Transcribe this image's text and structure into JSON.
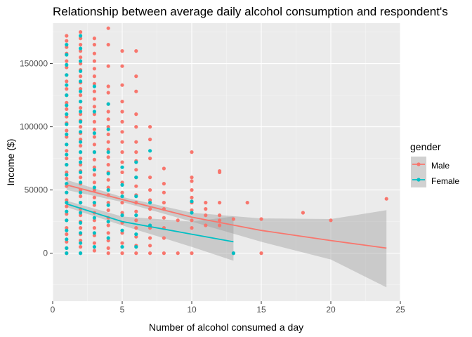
{
  "chart_data": {
    "type": "scatter",
    "title": "Relationship between average daily alcohol consumption and respondent's",
    "xlabel": "Number of alcohol consumed a day",
    "ylabel": "Income ($)",
    "xlim": [
      0,
      25
    ],
    "ylim": [
      -38000,
      182000
    ],
    "x_ticks": [
      0,
      5,
      10,
      15,
      20,
      25
    ],
    "x_tick_labels": [
      "0",
      "5",
      "10",
      "15",
      "20",
      "25"
    ],
    "y_ticks": [
      0,
      50000,
      100000,
      150000
    ],
    "y_tick_labels": [
      "0",
      "50000",
      "100000",
      "150000"
    ],
    "grid": true,
    "legend": {
      "title": "gender",
      "position": "right",
      "entries": [
        "Male",
        "Female"
      ]
    },
    "colors": {
      "Male": "#F8766D",
      "Female": "#00BFC4",
      "ribbon": "#999999",
      "panel": "#EBEBEB"
    },
    "series": [
      {
        "name": "Male",
        "color": "#F8766D",
        "points": [
          [
            1,
            172000
          ],
          [
            1,
            168000
          ],
          [
            1,
            163000
          ],
          [
            1,
            158000
          ],
          [
            1,
            152000
          ],
          [
            1,
            147000
          ],
          [
            1,
            141000
          ],
          [
            1,
            136000
          ],
          [
            1,
            130000
          ],
          [
            1,
            125000
          ],
          [
            1,
            119000
          ],
          [
            1,
            114000
          ],
          [
            1,
            108000
          ],
          [
            1,
            103000
          ],
          [
            1,
            97000
          ],
          [
            1,
            92000
          ],
          [
            1,
            86000
          ],
          [
            1,
            81000
          ],
          [
            1,
            75000
          ],
          [
            1,
            70000
          ],
          [
            1,
            64000
          ],
          [
            1,
            59000
          ],
          [
            1,
            53000
          ],
          [
            1,
            48000
          ],
          [
            1,
            42000
          ],
          [
            1,
            37000
          ],
          [
            1,
            31000
          ],
          [
            1,
            26000
          ],
          [
            1,
            20000
          ],
          [
            1,
            15000
          ],
          [
            1,
            9000
          ],
          [
            1,
            4000
          ],
          [
            1,
            0
          ],
          [
            2,
            175000
          ],
          [
            2,
            170000
          ],
          [
            2,
            165000
          ],
          [
            2,
            160000
          ],
          [
            2,
            155000
          ],
          [
            2,
            150000
          ],
          [
            2,
            145000
          ],
          [
            2,
            140000
          ],
          [
            2,
            135000
          ],
          [
            2,
            130000
          ],
          [
            2,
            125000
          ],
          [
            2,
            120000
          ],
          [
            2,
            115000
          ],
          [
            2,
            110000
          ],
          [
            2,
            105000
          ],
          [
            2,
            100000
          ],
          [
            2,
            95000
          ],
          [
            2,
            90000
          ],
          [
            2,
            85000
          ],
          [
            2,
            80000
          ],
          [
            2,
            75000
          ],
          [
            2,
            70000
          ],
          [
            2,
            65000
          ],
          [
            2,
            60000
          ],
          [
            2,
            55000
          ],
          [
            2,
            50000
          ],
          [
            2,
            45000
          ],
          [
            2,
            40000
          ],
          [
            2,
            35000
          ],
          [
            2,
            30000
          ],
          [
            2,
            25000
          ],
          [
            2,
            20000
          ],
          [
            2,
            15000
          ],
          [
            2,
            10000
          ],
          [
            2,
            5000
          ],
          [
            2,
            0
          ],
          [
            3,
            170000
          ],
          [
            3,
            165000
          ],
          [
            3,
            158000
          ],
          [
            3,
            152000
          ],
          [
            3,
            146000
          ],
          [
            3,
            140000
          ],
          [
            3,
            134000
          ],
          [
            3,
            128000
          ],
          [
            3,
            122000
          ],
          [
            3,
            116000
          ],
          [
            3,
            110000
          ],
          [
            3,
            104000
          ],
          [
            3,
            98000
          ],
          [
            3,
            92000
          ],
          [
            3,
            86000
          ],
          [
            3,
            80000
          ],
          [
            3,
            74000
          ],
          [
            3,
            68000
          ],
          [
            3,
            62000
          ],
          [
            3,
            56000
          ],
          [
            3,
            50000
          ],
          [
            3,
            44000
          ],
          [
            3,
            38000
          ],
          [
            3,
            32000
          ],
          [
            3,
            26000
          ],
          [
            3,
            20000
          ],
          [
            3,
            14000
          ],
          [
            3,
            8000
          ],
          [
            3,
            2000
          ],
          [
            4,
            178000
          ],
          [
            4,
            165000
          ],
          [
            4,
            148000
          ],
          [
            4,
            132000
          ],
          [
            4,
            127000
          ],
          [
            4,
            118000
          ],
          [
            4,
            112000
          ],
          [
            4,
            106000
          ],
          [
            4,
            100000
          ],
          [
            4,
            94000
          ],
          [
            4,
            88000
          ],
          [
            4,
            82000
          ],
          [
            4,
            76000
          ],
          [
            4,
            70000
          ],
          [
            4,
            64000
          ],
          [
            4,
            58000
          ],
          [
            4,
            52000
          ],
          [
            4,
            46000
          ],
          [
            4,
            40000
          ],
          [
            4,
            34000
          ],
          [
            4,
            28000
          ],
          [
            4,
            22000
          ],
          [
            4,
            16000
          ],
          [
            4,
            10000
          ],
          [
            4,
            4000
          ],
          [
            4,
            0
          ],
          [
            5,
            160000
          ],
          [
            5,
            148000
          ],
          [
            5,
            133000
          ],
          [
            5,
            120000
          ],
          [
            5,
            112000
          ],
          [
            5,
            104000
          ],
          [
            5,
            96000
          ],
          [
            5,
            88000
          ],
          [
            5,
            80000
          ],
          [
            5,
            72000
          ],
          [
            5,
            64000
          ],
          [
            5,
            56000
          ],
          [
            5,
            48000
          ],
          [
            5,
            40000
          ],
          [
            5,
            32000
          ],
          [
            5,
            24000
          ],
          [
            5,
            16000
          ],
          [
            5,
            8000
          ],
          [
            5,
            0
          ],
          [
            6,
            160000
          ],
          [
            6,
            140000
          ],
          [
            6,
            128000
          ],
          [
            6,
            110000
          ],
          [
            6,
            100000
          ],
          [
            6,
            88000
          ],
          [
            6,
            80000
          ],
          [
            6,
            73000
          ],
          [
            6,
            66000
          ],
          [
            6,
            60000
          ],
          [
            6,
            53000
          ],
          [
            6,
            46000
          ],
          [
            6,
            40000
          ],
          [
            6,
            33000
          ],
          [
            6,
            26000
          ],
          [
            6,
            20000
          ],
          [
            6,
            13000
          ],
          [
            6,
            6000
          ],
          [
            6,
            0
          ],
          [
            7,
            100000
          ],
          [
            7,
            90000
          ],
          [
            7,
            75000
          ],
          [
            7,
            60000
          ],
          [
            7,
            50000
          ],
          [
            7,
            42000
          ],
          [
            7,
            35000
          ],
          [
            7,
            28000
          ],
          [
            7,
            20000
          ],
          [
            7,
            12000
          ],
          [
            7,
            6000
          ],
          [
            7,
            0
          ],
          [
            8,
            67000
          ],
          [
            8,
            55000
          ],
          [
            8,
            48000
          ],
          [
            8,
            40000
          ],
          [
            8,
            35000
          ],
          [
            8,
            28000
          ],
          [
            8,
            20000
          ],
          [
            8,
            12000
          ],
          [
            8,
            0
          ],
          [
            9,
            26000
          ],
          [
            9,
            0
          ],
          [
            10,
            80000
          ],
          [
            10,
            60000
          ],
          [
            10,
            57000
          ],
          [
            10,
            50000
          ],
          [
            10,
            44000
          ],
          [
            10,
            40000
          ],
          [
            10,
            34000
          ],
          [
            10,
            26000
          ],
          [
            10,
            20000
          ],
          [
            10,
            0
          ],
          [
            11,
            40000
          ],
          [
            11,
            35000
          ],
          [
            11,
            30000
          ],
          [
            11,
            22000
          ],
          [
            12,
            65000
          ],
          [
            12,
            64000
          ],
          [
            12,
            40000
          ],
          [
            12,
            30000
          ],
          [
            12,
            26000
          ],
          [
            12,
            22000
          ],
          [
            13,
            27000
          ],
          [
            13,
            0
          ],
          [
            14,
            40000
          ],
          [
            15,
            27000
          ],
          [
            15,
            0
          ],
          [
            18,
            32000
          ],
          [
            20,
            26000
          ],
          [
            24,
            43000
          ]
        ]
      },
      {
        "name": "Female",
        "color": "#00BFC4",
        "points": [
          [
            1,
            165000
          ],
          [
            1,
            157000
          ],
          [
            1,
            149000
          ],
          [
            1,
            141000
          ],
          [
            1,
            133000
          ],
          [
            1,
            125000
          ],
          [
            1,
            117000
          ],
          [
            1,
            110000
          ],
          [
            1,
            102000
          ],
          [
            1,
            94000
          ],
          [
            1,
            86000
          ],
          [
            1,
            78000
          ],
          [
            1,
            70000
          ],
          [
            1,
            62000
          ],
          [
            1,
            55000
          ],
          [
            1,
            48000
          ],
          [
            1,
            40000
          ],
          [
            1,
            33000
          ],
          [
            1,
            26000
          ],
          [
            1,
            18000
          ],
          [
            1,
            11000
          ],
          [
            1,
            4000
          ],
          [
            1,
            0
          ],
          [
            2,
            172000
          ],
          [
            2,
            162000
          ],
          [
            2,
            152000
          ],
          [
            2,
            144000
          ],
          [
            2,
            136000
          ],
          [
            2,
            128000
          ],
          [
            2,
            120000
          ],
          [
            2,
            112000
          ],
          [
            2,
            104000
          ],
          [
            2,
            96000
          ],
          [
            2,
            88000
          ],
          [
            2,
            80000
          ],
          [
            2,
            72000
          ],
          [
            2,
            64000
          ],
          [
            2,
            56000
          ],
          [
            2,
            48000
          ],
          [
            2,
            40000
          ],
          [
            2,
            32000
          ],
          [
            2,
            24000
          ],
          [
            2,
            16000
          ],
          [
            2,
            8000
          ],
          [
            2,
            0
          ],
          [
            3,
            132000
          ],
          [
            3,
            112000
          ],
          [
            3,
            95000
          ],
          [
            3,
            80000
          ],
          [
            3,
            66000
          ],
          [
            3,
            52000
          ],
          [
            3,
            40000
          ],
          [
            3,
            28000
          ],
          [
            3,
            16000
          ],
          [
            3,
            5000
          ],
          [
            4,
            118000
          ],
          [
            4,
            98000
          ],
          [
            4,
            80000
          ],
          [
            4,
            63000
          ],
          [
            4,
            50000
          ],
          [
            4,
            38000
          ],
          [
            4,
            25000
          ],
          [
            4,
            12000
          ],
          [
            5,
            68000
          ],
          [
            5,
            54000
          ],
          [
            5,
            45000
          ],
          [
            5,
            30000
          ],
          [
            5,
            18000
          ],
          [
            5,
            5000
          ],
          [
            6,
            72000
          ],
          [
            6,
            60000
          ],
          [
            6,
            45000
          ],
          [
            6,
            30000
          ],
          [
            6,
            15000
          ],
          [
            6,
            5000
          ],
          [
            7,
            81000
          ],
          [
            7,
            40000
          ],
          [
            7,
            22000
          ],
          [
            10,
            41000
          ],
          [
            10,
            32000
          ],
          [
            13,
            0
          ]
        ]
      }
    ],
    "trend_lines": [
      {
        "name": "Male",
        "x": [
          1,
          5,
          10,
          15,
          20,
          24
        ],
        "y": [
          54000,
          42500,
          28500,
          18000,
          10000,
          4000
        ],
        "ci_low": [
          50000,
          40500,
          25000,
          9000,
          -5000,
          -27000
        ],
        "ci_high": [
          58000,
          44500,
          32000,
          27500,
          27000,
          34000
        ]
      },
      {
        "name": "Female",
        "x": [
          1,
          5,
          10,
          13
        ],
        "y": [
          39000,
          25000,
          15000,
          9000
        ],
        "ci_low": [
          36500,
          22000,
          5000,
          -6000
        ],
        "ci_high": [
          41500,
          29000,
          25000,
          29000
        ]
      }
    ]
  }
}
